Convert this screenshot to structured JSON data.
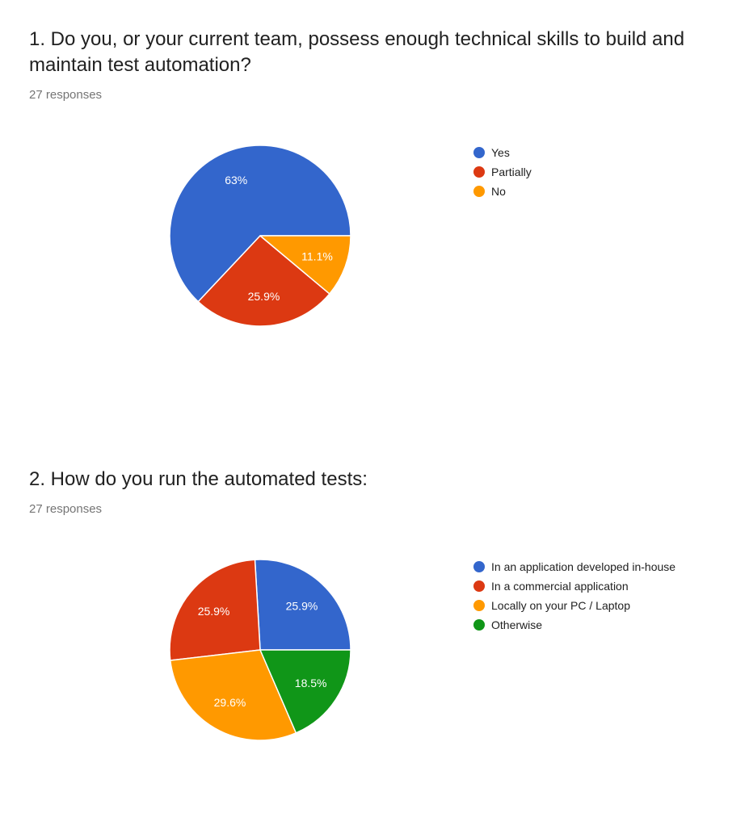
{
  "questions": [
    {
      "title": "1. Do you, or your current team, possess enough technical skills to build and maintain test automation?",
      "responses": "27 responses"
    },
    {
      "title": "2. How do you run the automated tests:",
      "responses": "27 responses"
    }
  ],
  "chart_data": [
    {
      "type": "pie",
      "title": "1. Do you, or your current team, possess enough technical skills to build and maintain test automation?",
      "categories": [
        "Yes",
        "Partially",
        "No"
      ],
      "values": [
        63,
        25.9,
        11.1
      ],
      "value_labels": [
        "63%",
        "25.9%",
        "11.1%"
      ],
      "colors": [
        "#3366cc",
        "#dc3912",
        "#ff9900"
      ],
      "legend_position": "right"
    },
    {
      "type": "pie",
      "title": "2. How do you run the automated tests:",
      "categories": [
        "In an application developed in-house",
        "In a commercial application",
        "Locally on your PC / Laptop",
        "Otherwise"
      ],
      "values": [
        25.9,
        25.9,
        29.6,
        18.5
      ],
      "value_labels": [
        "25.9%",
        "25.9%",
        "29.6%",
        "18.5%"
      ],
      "colors": [
        "#3366cc",
        "#dc3912",
        "#ff9900",
        "#109618"
      ],
      "legend_position": "right"
    }
  ]
}
